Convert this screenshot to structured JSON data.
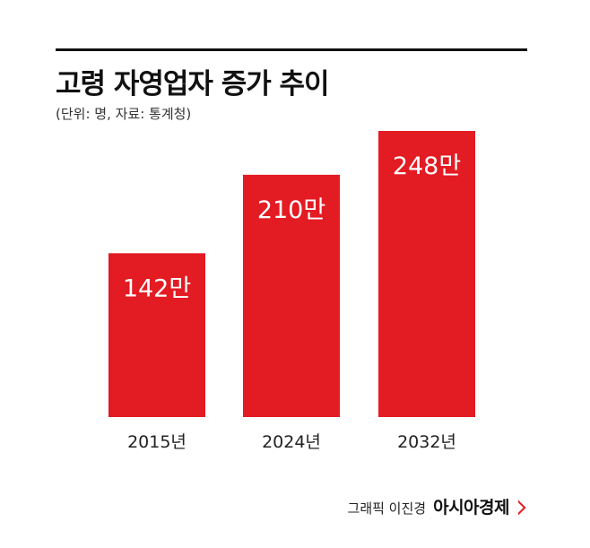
{
  "header": {
    "title": "고령 자영업자 증가 추이",
    "subtitle": "(단위: 명, 자료: 통계청)"
  },
  "footer": {
    "credit": "그래픽 이진경",
    "brand": "아시아경제"
  },
  "colors": {
    "bar": "#e31b23",
    "bar_label": "#ffffff"
  },
  "chart_data": {
    "type": "bar",
    "categories": [
      "2015년",
      "2024년",
      "2032년"
    ],
    "values": [
      142,
      210,
      248
    ],
    "value_labels": [
      "142만",
      "210만",
      "248만"
    ],
    "ylim": [
      0,
      248
    ],
    "grid": false,
    "legend": "none"
  }
}
